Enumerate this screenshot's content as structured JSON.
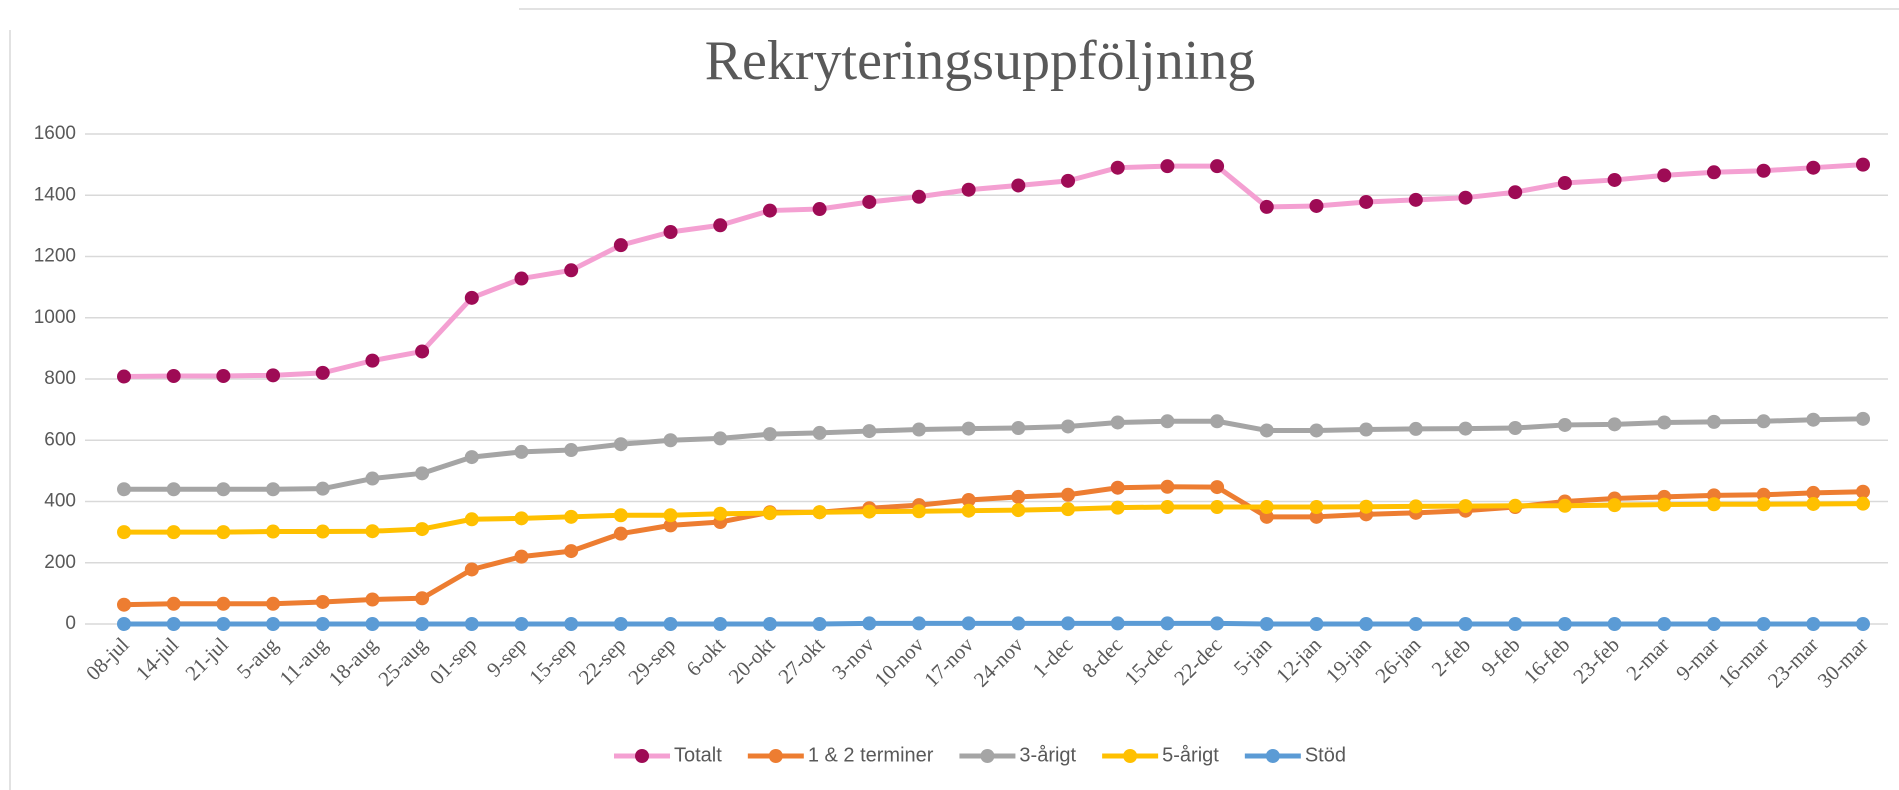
{
  "chart_data": {
    "type": "line",
    "title": "Rekryteringsuppföljning",
    "categories": [
      "08-jul",
      "14-jul",
      "21-jul",
      "5-aug",
      "11-aug",
      "18-aug",
      "25-aug",
      "01-sep",
      "9-sep",
      "15-sep",
      "22-sep",
      "29-sep",
      "6-okt",
      "20-okt",
      "27-okt",
      "3-nov",
      "10-nov",
      "17-nov",
      "24-nov",
      "1-dec",
      "8-dec",
      "15-dec",
      "22-dec",
      "5-jan",
      "12-jan",
      "19-jan",
      "26-jan",
      "2-feb",
      "9-feb",
      "16-feb",
      "23-feb",
      "2-mar",
      "9-mar",
      "16-mar",
      "23-mar",
      "30-mar"
    ],
    "series": [
      {
        "name": "Totalt",
        "color": "#f4a0d2",
        "marker_color": "#9e0b55",
        "values": [
          808,
          810,
          810,
          812,
          820,
          860,
          890,
          1065,
          1128,
          1155,
          1237,
          1280,
          1302,
          1350,
          1355,
          1378,
          1395,
          1418,
          1432,
          1447,
          1490,
          1495,
          1495,
          1362,
          1365,
          1378,
          1385,
          1392,
          1410,
          1440,
          1450,
          1465,
          1475,
          1480,
          1490,
          1500
        ]
      },
      {
        "name": "1 & 2 terminer",
        "color": "#ed7d31",
        "marker_color": "#ed7d31",
        "values": [
          63,
          66,
          66,
          66,
          72,
          80,
          84,
          178,
          220,
          238,
          295,
          322,
          333,
          365,
          365,
          378,
          388,
          405,
          415,
          422,
          445,
          448,
          447,
          350,
          350,
          358,
          363,
          370,
          382,
          400,
          410,
          415,
          420,
          422,
          428,
          432
        ]
      },
      {
        "name": "3-årigt",
        "color": "#a5a5a5",
        "marker_color": "#a5a5a5",
        "values": [
          440,
          440,
          440,
          440,
          442,
          475,
          492,
          545,
          562,
          568,
          587,
          600,
          606,
          620,
          624,
          630,
          635,
          638,
          640,
          645,
          658,
          662,
          662,
          632,
          632,
          635,
          637,
          638,
          640,
          650,
          652,
          658,
          660,
          662,
          667,
          670
        ]
      },
      {
        "name": "5-årigt",
        "color": "#ffc000",
        "marker_color": "#ffc000",
        "values": [
          300,
          300,
          300,
          302,
          302,
          303,
          310,
          342,
          345,
          350,
          355,
          355,
          360,
          362,
          365,
          367,
          368,
          370,
          372,
          375,
          380,
          382,
          382,
          382,
          382,
          383,
          384,
          385,
          386,
          386,
          388,
          390,
          391,
          391,
          392,
          393
        ]
      },
      {
        "name": "Stöd",
        "color": "#5b9bd5",
        "marker_color": "#5b9bd5",
        "values": [
          0,
          0,
          0,
          0,
          0,
          0,
          0,
          0,
          0,
          0,
          0,
          0,
          0,
          0,
          0,
          2,
          2,
          2,
          2,
          2,
          2,
          2,
          2,
          0,
          0,
          0,
          0,
          0,
          0,
          0,
          0,
          0,
          0,
          0,
          0,
          0
        ]
      }
    ],
    "ylim": [
      0,
      1600
    ],
    "yticks": [
      0,
      200,
      400,
      600,
      800,
      1000,
      1200,
      1400,
      1600
    ],
    "grid": true
  }
}
